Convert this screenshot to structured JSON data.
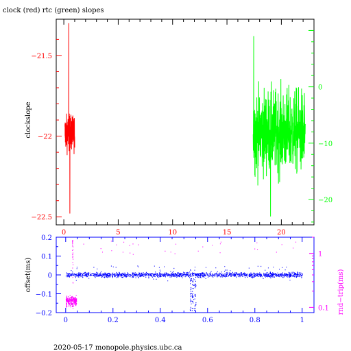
{
  "page": {
    "title": "clock (red) rtc (green) slopes",
    "footer": "2020-05-17  monopole.physics.ubc.ca"
  },
  "chart_data": [
    {
      "type": "line",
      "title": "clock (red) rtc (green) slopes",
      "xlabel": "",
      "ylabel": "clockslope",
      "xlim": [
        -0.7,
        23
      ],
      "ylim": [
        -22.55,
        -21.275
      ],
      "xticks": [
        0,
        5,
        10,
        15,
        20
      ],
      "yticks": [
        -21.5,
        -22,
        -22.5
      ],
      "y2lim": [
        -24.5,
        12
      ],
      "y2ticks": [
        0,
        -10,
        -20
      ],
      "colors": {
        "axes": "#000000",
        "left": "#ff0000",
        "right": "#00ff00",
        "ticks_x": "#ff0000"
      },
      "series": [
        {
          "name": "clock",
          "axis": "left",
          "color": "#ff0000",
          "x_range": [
            0.1,
            1.0
          ],
          "center": -21.98,
          "spread": 0.1,
          "peak_range": [
            -22.48,
            -21.3
          ]
        },
        {
          "name": "rtc",
          "axis": "right",
          "color": "#00ff00",
          "x_range": [
            17.4,
            22.2
          ],
          "center": -8,
          "spread": 7,
          "peak_range": [
            -23,
            9
          ]
        }
      ]
    },
    {
      "type": "scatter",
      "xlabel": "",
      "ylabel": "offset(ms)",
      "y2label": "rnd−trip(ms)",
      "xlim": [
        -0.04,
        1.05
      ],
      "ylim": [
        -0.2,
        0.2
      ],
      "xticks": [
        0,
        0.2,
        0.4,
        0.6,
        0.8,
        1
      ],
      "yticks": [
        0.2,
        0.1,
        0,
        -0.1,
        -0.2
      ],
      "y2scale": "log",
      "y2ticks": [
        1,
        0.1
      ],
      "colors": {
        "axes": "#0000ff",
        "offset": "#0000ff",
        "rndtrip": "#ff00ff"
      },
      "series": [
        {
          "name": "offset",
          "color": "#0000ff",
          "x_range": [
            0,
            1
          ],
          "center": 0.0,
          "spread": 0.012
        },
        {
          "name": "rnd-trip",
          "color": "#ff00ff",
          "x_range": [
            0,
            0.045
          ],
          "center": 0.13,
          "spread": 0.04
        }
      ]
    }
  ]
}
